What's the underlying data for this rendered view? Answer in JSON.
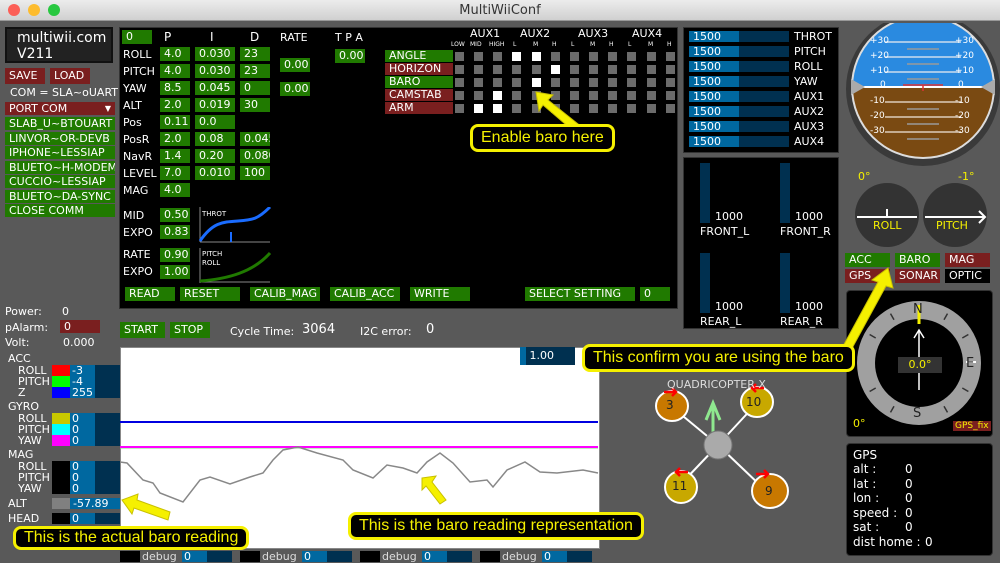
{
  "window": {
    "title": "MultiWiiConf"
  },
  "logo": {
    "line1": "multiwii.com",
    "line2": "V211"
  },
  "left": {
    "save": "SAVE",
    "load": "LOAD",
    "com_status": "COM = SLA~oUART",
    "port_com": "PORT COM",
    "ports": [
      "SLAB_U~BTOUART",
      "LINVOR~OR-DEVB",
      "IPHONE~LESSIAP",
      "BLUETO~H-MODEM",
      "CUCCIO~LESSIAP",
      "BLUETO~DA-SYNC",
      "CLOSE COMM"
    ],
    "power_label": "Power:",
    "power": "0",
    "palarm_label": "pAlarm:",
    "palarm": "0",
    "volt_label": "Volt:",
    "volt": "0.000"
  },
  "pid": {
    "profile": "0",
    "headers": {
      "p": "P",
      "i": "I",
      "d": "D",
      "rate": "RATE",
      "tpa": "T P A"
    },
    "rows": [
      {
        "name": "ROLL",
        "p": "4.0",
        "i": "0.030",
        "d": "23"
      },
      {
        "name": "PITCH",
        "p": "4.0",
        "i": "0.030",
        "d": "23"
      },
      {
        "name": "YAW",
        "p": "8.5",
        "i": "0.045",
        "d": "0"
      },
      {
        "name": "ALT",
        "p": "2.0",
        "i": "0.019",
        "d": "30"
      },
      {
        "name": "Pos",
        "p": "0.11",
        "i": "0.0",
        "d": ""
      },
      {
        "name": "PosR",
        "p": "2.0",
        "i": "0.08",
        "d": "0.045"
      },
      {
        "name": "NavR",
        "p": "1.4",
        "i": "0.20",
        "d": "0.080"
      },
      {
        "name": "LEVEL",
        "p": "7.0",
        "i": "0.010",
        "d": "100"
      },
      {
        "name": "MAG",
        "p": "4.0",
        "i": "",
        "d": ""
      }
    ],
    "rate_rollpitch": "0.00",
    "rate_yaw": "0.00",
    "tpa": "0.00",
    "mid_label": "MID",
    "mid": "0.50",
    "expo_label": "EXPO",
    "throt_expo": "0.83",
    "rate_label": "RATE",
    "rc_rate": "0.90",
    "rc_expo": "1.00",
    "throt_chart_label": "THROT",
    "pitchroll_chart_label1": "PITCH",
    "pitchroll_chart_label2": "ROLL"
  },
  "buttons": {
    "read": "READ",
    "reset": "RESET",
    "calib_mag": "CALIB_MAG",
    "calib_acc": "CALIB_ACC",
    "write": "WRITE",
    "select_setting": "SELECT SETTING",
    "setting_value": "0",
    "start": "START",
    "stop": "STOP"
  },
  "aux": {
    "groups": [
      "AUX1",
      "AUX2",
      "AUX3",
      "AUX4"
    ],
    "sub": [
      "LOW",
      "MID",
      "HIGH",
      "L",
      "M",
      "H",
      "L",
      "M",
      "H",
      "L",
      "M",
      "H"
    ],
    "modes": [
      {
        "name": "ANGLE",
        "active": true,
        "on": [
          3,
          4
        ]
      },
      {
        "name": "HORIZON",
        "active": false,
        "on": [
          5
        ]
      },
      {
        "name": "BARO",
        "active": true,
        "on": [
          4
        ]
      },
      {
        "name": "CAMSTAB",
        "active": false,
        "on": [
          2
        ]
      },
      {
        "name": "ARM",
        "active": false,
        "on": [
          1,
          2
        ]
      }
    ]
  },
  "rc": [
    {
      "name": "THROT",
      "value": "1500"
    },
    {
      "name": "PITCH",
      "value": "1500"
    },
    {
      "name": "ROLL",
      "value": "1500"
    },
    {
      "name": "YAW",
      "value": "1500"
    },
    {
      "name": "AUX1",
      "value": "1500"
    },
    {
      "name": "AUX2",
      "value": "1500"
    },
    {
      "name": "AUX3",
      "value": "1500"
    },
    {
      "name": "AUX4",
      "value": "1500"
    }
  ],
  "motors": [
    {
      "name": "FRONT_L",
      "value": "1000"
    },
    {
      "name": "FRONT_R",
      "value": "1000"
    },
    {
      "name": "REAR_L",
      "value": "1000"
    },
    {
      "name": "REAR_R",
      "value": "1000"
    }
  ],
  "status": {
    "cycle_label": "Cycle Time:",
    "cycle": "3064",
    "i2c_label": "I2C error:",
    "i2c": "0",
    "graph_scale": "1.00"
  },
  "sensors": {
    "acc": {
      "label": "ACC",
      "roll": "-3",
      "pitch": "-4",
      "z": "255"
    },
    "gyro": {
      "label": "GYRO",
      "roll": "0",
      "pitch": "0",
      "yaw": "0"
    },
    "mag": {
      "label": "MAG",
      "roll": "0",
      "pitch": "0",
      "yaw": "0"
    },
    "roll_label": "ROLL",
    "pitch_label": "PITCH",
    "yaw_label": "YAW",
    "z_label": "Z",
    "alt_label": "ALT",
    "alt": "-57.89",
    "head_label": "HEAD",
    "head": "0",
    "colors": {
      "acc_roll": "#ff0000",
      "acc_pitch": "#00ff00",
      "acc_z": "#0000ff",
      "gyro_roll": "#c8c800",
      "gyro_pitch": "#00ffff",
      "gyro_yaw": "#ff00ff",
      "alt": "#808080"
    }
  },
  "debug": [
    {
      "label": "debug",
      "value": "0"
    },
    {
      "label": "debug",
      "value": "0"
    },
    {
      "label": "debug",
      "value": "0"
    },
    {
      "label": "debug",
      "value": "0"
    }
  ],
  "horizon": {
    "ticks_up": [
      "+30",
      "+20",
      "+10"
    ],
    "zero": "0",
    "ticks_down": [
      "-10",
      "-20",
      "-30"
    ],
    "roll": "0°",
    "pitch": "-1°",
    "roll_label": "ROLL",
    "pitch_label": "PITCH"
  },
  "flags": [
    {
      "name": "ACC",
      "on": true
    },
    {
      "name": "BARO",
      "on": true
    },
    {
      "name": "MAG",
      "on": false
    },
    {
      "name": "GPS",
      "on": false
    },
    {
      "name": "SONAR",
      "on": false
    },
    {
      "name": "OPTIC",
      "on": null
    }
  ],
  "compass": {
    "n": "N",
    "e": "E",
    "s": "S",
    "heading": "0.0°",
    "offset": "0°",
    "gps_fix": "GPS_fix"
  },
  "quad": {
    "type": "QUADRICOPTER X",
    "motors": [
      "3",
      "10",
      "11",
      "9"
    ]
  },
  "gps": {
    "title": "GPS",
    "rows": [
      {
        "label": "alt  :",
        "value": "0"
      },
      {
        "label": "lat  :",
        "value": "0"
      },
      {
        "label": "lon  :",
        "value": "0"
      },
      {
        "label": "speed :",
        "value": "0"
      },
      {
        "label": "sat  :",
        "value": "0"
      },
      {
        "label": "dist home :",
        "value": "0"
      }
    ]
  },
  "callouts": {
    "enable_baro": "Enable baro here",
    "confirm_baro": "This confirm you are using the baro",
    "actual_baro": "This is the actual baro reading",
    "baro_graph": "This is the baro reading representation"
  }
}
